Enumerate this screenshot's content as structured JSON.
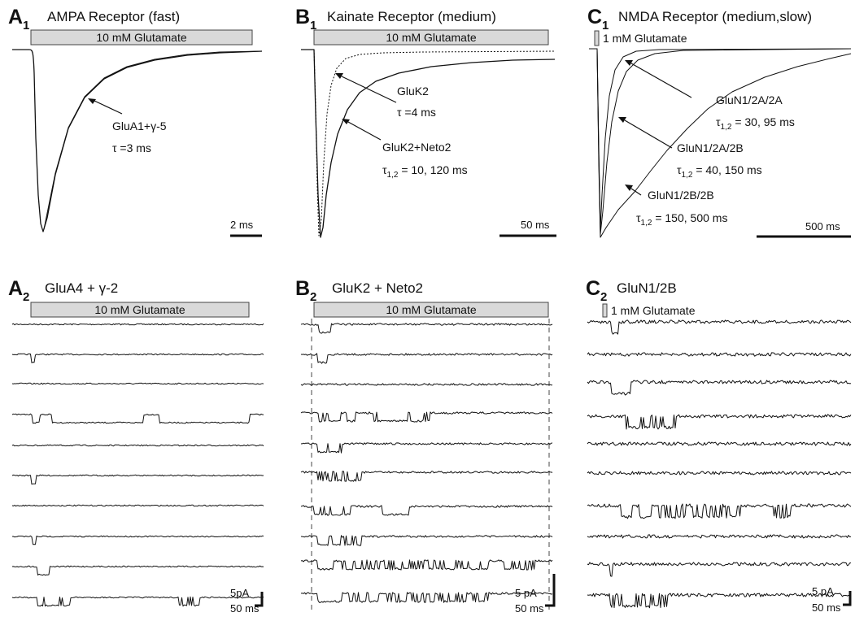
{
  "panels": {
    "A1": {
      "letter": "A",
      "sub": "1",
      "title": "AMPA Receptor (fast)",
      "bar": "10 mM Glutamate",
      "ann": [
        {
          "line1": "GluA1+γ-5",
          "line2": "τ =3 ms"
        }
      ],
      "scale_x": "2 ms"
    },
    "B1": {
      "letter": "B",
      "sub": "1",
      "title": "Kainate Receptor (medium)",
      "bar": "10 mM Glutamate",
      "ann": [
        {
          "line1": "GluK2",
          "line2": "τ =4 ms"
        },
        {
          "line1": "GluK2+Neto2",
          "tau": "τ",
          "tsub": "1,2",
          "rest": " = 10, 120 ms"
        }
      ],
      "scale_x": "50 ms"
    },
    "C1": {
      "letter": "C",
      "sub": "1",
      "title": "NMDA Receptor (medium,slow)",
      "bar": "1 mM Glutamate",
      "ann": [
        {
          "line1": "GluN1/2A/2A",
          "tau": "τ",
          "tsub": "1,2",
          "rest": " = 30, 95 ms"
        },
        {
          "line1": "GluN1/2A/2B",
          "tau": "τ",
          "tsub": "1,2",
          "rest": " = 40, 150 ms"
        },
        {
          "line1": "GluN1/2B/2B",
          "tau": "τ",
          "tsub": "1,2",
          "rest": " = 150, 500 ms"
        }
      ],
      "scale_x": "500 ms"
    },
    "A2": {
      "letter": "A",
      "sub": "2",
      "title": "GluA4 + γ-2",
      "bar": "10 mM Glutamate",
      "scale_y": "5pA",
      "scale_x": "50 ms"
    },
    "B2": {
      "letter": "B",
      "sub": "2",
      "title": "GluK2 + Neto2",
      "bar": "10 mM Glutamate",
      "scale_y": "5 pA",
      "scale_x": "50 ms"
    },
    "C2": {
      "letter": "C",
      "sub": "2",
      "title": "GluN1/2B",
      "bar": "1 mM Glutamate",
      "scale_y": "5 pA",
      "scale_x": "50 ms"
    }
  }
}
